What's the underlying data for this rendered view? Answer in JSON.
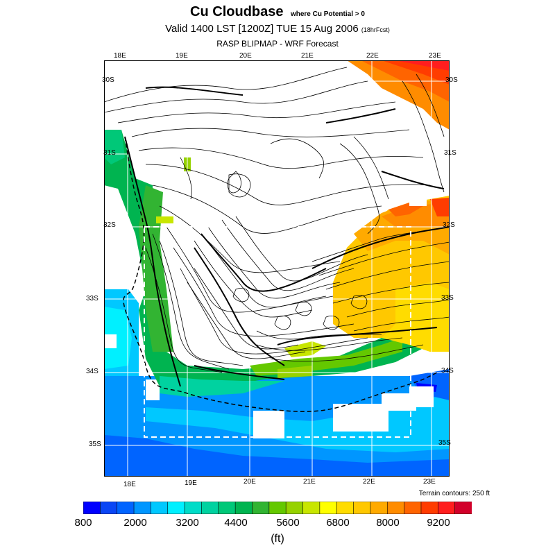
{
  "header": {
    "title": "Cu Cloudbase",
    "subtitle": "where Cu Potential > 0",
    "valid_line": "Valid 1400 LST [1200Z] TUE 15 Aug 2006",
    "forecast_hours": "(18hrFcst)",
    "model_line": "RASP BLIPMAP - WRF Forecast"
  },
  "map": {
    "top_lon_labels": [
      "18E",
      "19E",
      "20E",
      "21E",
      "22E",
      "23E"
    ],
    "bottom_lon_labels": [
      "18E",
      "19E",
      "20E",
      "21E",
      "22E",
      "23E"
    ],
    "left_lat_labels": [
      "30S",
      "31S",
      "32S",
      "33S",
      "34S",
      "35S"
    ],
    "right_lat_labels": [
      "30S",
      "31S",
      "32S",
      "33S",
      "34S",
      "35S"
    ],
    "terrain_note": "Terrain contours: 250 ft"
  },
  "colorbar": {
    "colors": [
      "#0000ff",
      "#0a46f5",
      "#0064ff",
      "#0096ff",
      "#00c8ff",
      "#00f0ff",
      "#00dcc8",
      "#00d2a0",
      "#00c878",
      "#00b450",
      "#32b432",
      "#64c800",
      "#96d200",
      "#c8e600",
      "#ffff00",
      "#ffdc00",
      "#ffc800",
      "#ffaa00",
      "#ff8c00",
      "#ff6400",
      "#ff3c00",
      "#ff1e1e",
      "#d2002a"
    ],
    "tick_labels": [
      "800",
      "2000",
      "3200",
      "4400",
      "5600",
      "6800",
      "8000",
      "9200"
    ],
    "unit": "(ft)"
  }
}
